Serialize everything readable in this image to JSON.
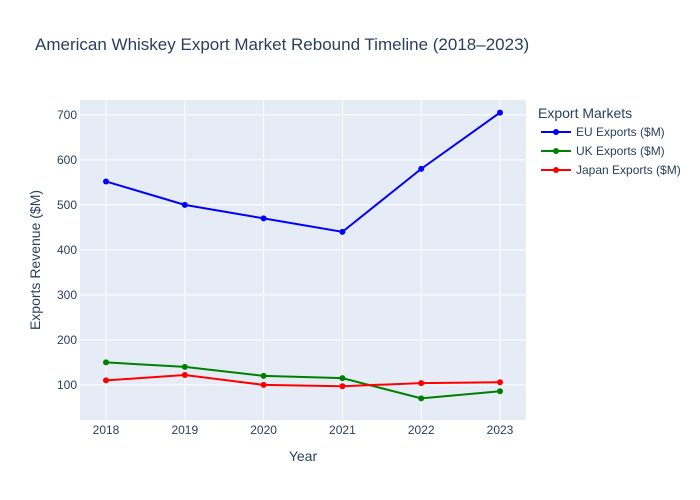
{
  "chart_data": {
    "type": "line",
    "title": "American Whiskey Export Market Rebound Timeline (2018–2023)",
    "xlabel": "Year",
    "ylabel": "Exports Revenue ($M)",
    "categories": [
      "2018",
      "2019",
      "2020",
      "2021",
      "2022",
      "2023"
    ],
    "y_ticks": [
      "100",
      "200",
      "300",
      "400",
      "500",
      "600",
      "700"
    ],
    "ylim": [
      22,
      733
    ],
    "grid": true,
    "legend_title": "Export Markets",
    "legend_placement": "right",
    "plot_background": "#e5ecf6",
    "series": [
      {
        "name": "EU Exports ($M)",
        "color": "#0000ff",
        "values": [
          552,
          500,
          470,
          440,
          580,
          705
        ]
      },
      {
        "name": "UK Exports ($M)",
        "color": "#008000",
        "values": [
          150,
          140,
          120,
          115,
          70,
          86
        ]
      },
      {
        "name": "Japan Exports ($M)",
        "color": "#ff0000",
        "values": [
          110,
          122,
          100,
          97,
          104,
          106
        ]
      }
    ]
  }
}
